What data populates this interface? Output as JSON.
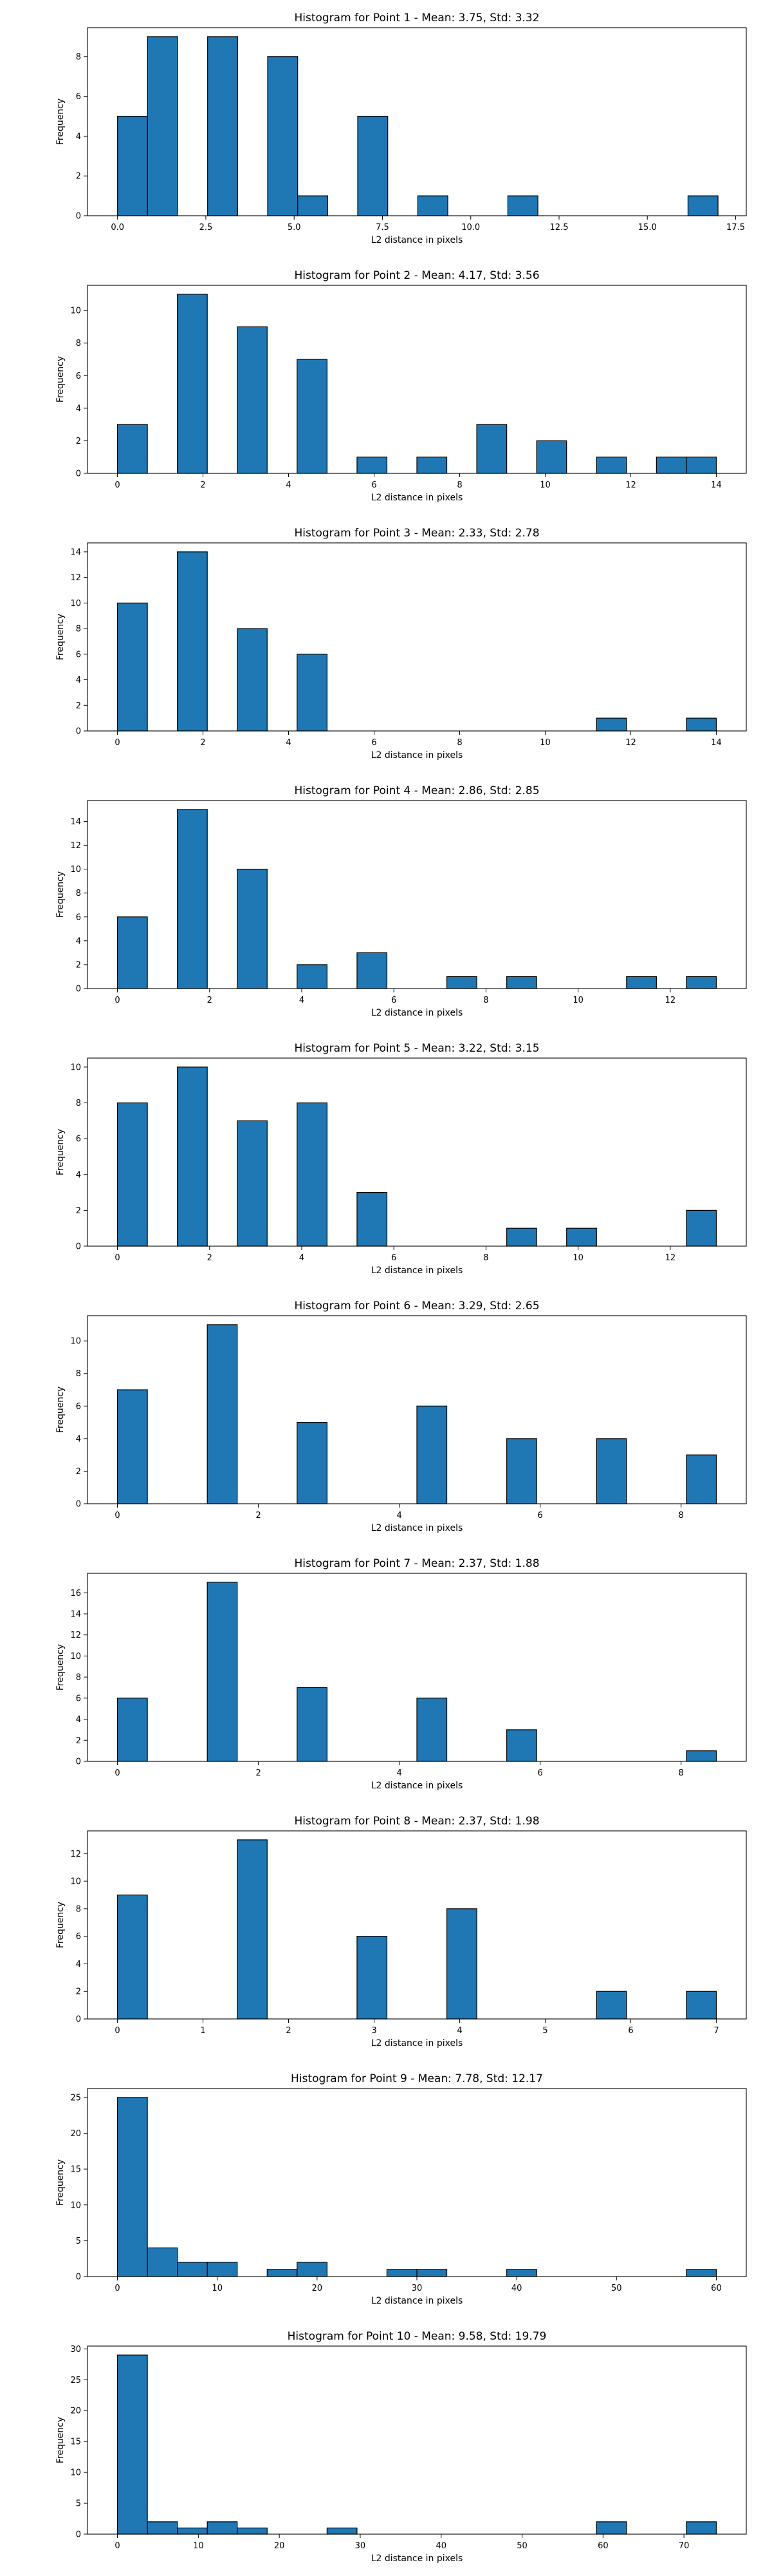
{
  "figure": {
    "bar_color": "#1f77b4",
    "edge_color": "#000000"
  },
  "chart_data": [
    {
      "type": "bar",
      "title": "Histogram for Point 1 - Mean: 3.75, Std: 3.32",
      "xlabel": "L2 distance in pixels",
      "ylabel": "Frequency",
      "xlim": [
        -0.85,
        17.8
      ],
      "ylim": [
        0,
        9.45
      ],
      "xticks": [
        0.0,
        2.5,
        5.0,
        7.5,
        10.0,
        12.5,
        15.0,
        17.5
      ],
      "xtick_labels": [
        "0.0",
        "2.5",
        "5.0",
        "7.5",
        "10.0",
        "12.5",
        "15.0",
        "17.5"
      ],
      "yticks": [
        0,
        2,
        4,
        6,
        8
      ],
      "bin_edges": [
        0.0,
        0.85,
        1.7,
        2.55,
        3.4,
        4.25,
        5.1,
        5.95,
        6.8,
        7.65,
        8.5,
        9.35,
        10.2,
        11.05,
        11.9,
        12.75,
        13.6,
        14.45,
        15.3,
        16.15,
        17.0
      ],
      "values": [
        5,
        9,
        0,
        9,
        0,
        8,
        1,
        0,
        5,
        0,
        1,
        0,
        0,
        1,
        0,
        0,
        0,
        0,
        0,
        1
      ]
    },
    {
      "type": "bar",
      "title": "Histogram for Point 2 - Mean: 4.17, Std: 3.56",
      "xlabel": "L2 distance in pixels",
      "ylabel": "Frequency",
      "xlim": [
        -0.7,
        14.7
      ],
      "ylim": [
        0,
        11.55
      ],
      "xticks": [
        0,
        2,
        4,
        6,
        8,
        10,
        12,
        14
      ],
      "xtick_labels": [
        "0",
        "2",
        "4",
        "6",
        "8",
        "10",
        "12",
        "14"
      ],
      "yticks": [
        0,
        2,
        4,
        6,
        8,
        10
      ],
      "bin_edges": [
        0.0,
        0.7,
        1.4,
        2.1,
        2.8,
        3.5,
        4.2,
        4.9,
        5.6,
        6.3,
        7.0,
        7.7,
        8.4,
        9.1,
        9.8,
        10.5,
        11.2,
        11.9,
        12.6,
        13.3,
        14.0
      ],
      "values": [
        3,
        0,
        11,
        0,
        9,
        0,
        7,
        0,
        1,
        0,
        1,
        0,
        3,
        0,
        2,
        0,
        1,
        0,
        1,
        1
      ]
    },
    {
      "type": "bar",
      "title": "Histogram for Point 3 - Mean: 2.33, Std: 2.78",
      "xlabel": "L2 distance in pixels",
      "ylabel": "Frequency",
      "xlim": [
        -0.7,
        14.7
      ],
      "ylim": [
        0,
        14.7
      ],
      "xticks": [
        0,
        2,
        4,
        6,
        8,
        10,
        12,
        14
      ],
      "xtick_labels": [
        "0",
        "2",
        "4",
        "6",
        "8",
        "10",
        "12",
        "14"
      ],
      "yticks": [
        0,
        2,
        4,
        6,
        8,
        10,
        12,
        14
      ],
      "bin_edges": [
        0.0,
        0.7,
        1.4,
        2.1,
        2.8,
        3.5,
        4.2,
        4.9,
        5.6,
        6.3,
        7.0,
        7.7,
        8.4,
        9.1,
        9.8,
        10.5,
        11.2,
        11.9,
        12.6,
        13.3,
        14.0
      ],
      "values": [
        10,
        0,
        14,
        0,
        8,
        0,
        6,
        0,
        0,
        0,
        0,
        0,
        0,
        0,
        0,
        0,
        1,
        0,
        0,
        1
      ]
    },
    {
      "type": "bar",
      "title": "Histogram for Point 4 - Mean: 2.86, Std: 2.85",
      "xlabel": "L2 distance in pixels",
      "ylabel": "Frequency",
      "xlim": [
        -0.65,
        13.65
      ],
      "ylim": [
        0,
        15.75
      ],
      "xticks": [
        0,
        2,
        4,
        6,
        8,
        10,
        12
      ],
      "xtick_labels": [
        "0",
        "2",
        "4",
        "6",
        "8",
        "10",
        "12"
      ],
      "yticks": [
        0,
        2,
        4,
        6,
        8,
        10,
        12,
        14
      ],
      "bin_edges": [
        0.0,
        0.65,
        1.3,
        1.95,
        2.6,
        3.25,
        3.9,
        4.55,
        5.2,
        5.85,
        6.5,
        7.15,
        7.8,
        8.45,
        9.1,
        9.75,
        10.4,
        11.05,
        11.7,
        12.35,
        13.0
      ],
      "values": [
        6,
        0,
        15,
        0,
        10,
        0,
        2,
        0,
        3,
        0,
        0,
        1,
        0,
        1,
        0,
        0,
        0,
        1,
        0,
        1
      ]
    },
    {
      "type": "bar",
      "title": "Histogram for Point 5 - Mean: 3.22, Std: 3.15",
      "xlabel": "L2 distance in pixels",
      "ylabel": "Frequency",
      "xlim": [
        -0.65,
        13.65
      ],
      "ylim": [
        0,
        10.5
      ],
      "xticks": [
        0,
        2,
        4,
        6,
        8,
        10,
        12
      ],
      "xtick_labels": [
        "0",
        "2",
        "4",
        "6",
        "8",
        "10",
        "12"
      ],
      "yticks": [
        0,
        2,
        4,
        6,
        8,
        10
      ],
      "bin_edges": [
        0.0,
        0.65,
        1.3,
        1.95,
        2.6,
        3.25,
        3.9,
        4.55,
        5.2,
        5.85,
        6.5,
        7.15,
        7.8,
        8.45,
        9.1,
        9.75,
        10.4,
        11.05,
        11.7,
        12.35,
        13.0
      ],
      "values": [
        8,
        0,
        10,
        0,
        7,
        0,
        8,
        0,
        3,
        0,
        0,
        0,
        0,
        1,
        0,
        1,
        0,
        0,
        0,
        2
      ]
    },
    {
      "type": "bar",
      "title": "Histogram for Point 6 - Mean: 3.29, Std: 2.65",
      "xlabel": "L2 distance in pixels",
      "ylabel": "Frequency",
      "xlim": [
        -0.425,
        8.925
      ],
      "ylim": [
        0,
        11.55
      ],
      "xticks": [
        0,
        2,
        4,
        6,
        8
      ],
      "xtick_labels": [
        "0",
        "2",
        "4",
        "6",
        "8"
      ],
      "yticks": [
        0,
        2,
        4,
        6,
        8,
        10
      ],
      "bin_edges": [
        0.0,
        0.425,
        0.85,
        1.275,
        1.7,
        2.125,
        2.55,
        2.975,
        3.4,
        3.825,
        4.25,
        4.675,
        5.1,
        5.525,
        5.95,
        6.375,
        6.8,
        7.225,
        7.65,
        8.075,
        8.5
      ],
      "values": [
        7,
        0,
        0,
        11,
        0,
        0,
        5,
        0,
        0,
        0,
        6,
        0,
        0,
        4,
        0,
        0,
        4,
        0,
        0,
        3
      ]
    },
    {
      "type": "bar",
      "title": "Histogram for Point 7 - Mean: 2.37, Std: 1.88",
      "xlabel": "L2 distance in pixels",
      "ylabel": "Frequency",
      "xlim": [
        -0.425,
        8.925
      ],
      "ylim": [
        0,
        17.85
      ],
      "xticks": [
        0,
        2,
        4,
        6,
        8
      ],
      "xtick_labels": [
        "0",
        "2",
        "4",
        "6",
        "8"
      ],
      "yticks": [
        0,
        2,
        4,
        6,
        8,
        10,
        12,
        14,
        16
      ],
      "bin_edges": [
        0.0,
        0.425,
        0.85,
        1.275,
        1.7,
        2.125,
        2.55,
        2.975,
        3.4,
        3.825,
        4.25,
        4.675,
        5.1,
        5.525,
        5.95,
        6.375,
        6.8,
        7.225,
        7.65,
        8.075,
        8.5
      ],
      "values": [
        6,
        0,
        0,
        17,
        0,
        0,
        7,
        0,
        0,
        0,
        6,
        0,
        0,
        3,
        0,
        0,
        0,
        0,
        0,
        1
      ]
    },
    {
      "type": "bar",
      "title": "Histogram for Point 8 - Mean: 2.37, Std: 1.98",
      "xlabel": "L2 distance in pixels",
      "ylabel": "Frequency",
      "xlim": [
        -0.35,
        7.35
      ],
      "ylim": [
        0,
        13.65
      ],
      "xticks": [
        0,
        1,
        2,
        3,
        4,
        5,
        6,
        7
      ],
      "xtick_labels": [
        "0",
        "1",
        "2",
        "3",
        "4",
        "5",
        "6",
        "7"
      ],
      "yticks": [
        0,
        2,
        4,
        6,
        8,
        10,
        12
      ],
      "bin_edges": [
        0.0,
        0.35,
        0.7,
        1.05,
        1.4,
        1.75,
        2.1,
        2.45,
        2.8,
        3.15,
        3.5,
        3.85,
        4.2,
        4.55,
        4.9,
        5.25,
        5.6,
        5.95,
        6.3,
        6.65,
        7.0
      ],
      "values": [
        9,
        0,
        0,
        0,
        13,
        0,
        0,
        0,
        6,
        0,
        0,
        8,
        0,
        0,
        0,
        0,
        2,
        0,
        0,
        2
      ]
    },
    {
      "type": "bar",
      "title": "Histogram for Point 9 - Mean: 7.78, Std: 12.17",
      "xlabel": "L2 distance in pixels",
      "ylabel": "Frequency",
      "xlim": [
        -3.0,
        63.0
      ],
      "ylim": [
        0,
        26.25
      ],
      "xticks": [
        0,
        10,
        20,
        30,
        40,
        50,
        60
      ],
      "xtick_labels": [
        "0",
        "10",
        "20",
        "30",
        "40",
        "50",
        "60"
      ],
      "yticks": [
        0,
        5,
        10,
        15,
        20,
        25
      ],
      "bin_edges": [
        0,
        3,
        6,
        9,
        12,
        15,
        18,
        21,
        24,
        27,
        30,
        33,
        36,
        39,
        42,
        45,
        48,
        51,
        54,
        57,
        60
      ],
      "values": [
        25,
        4,
        2,
        2,
        0,
        1,
        2,
        0,
        0,
        1,
        1,
        0,
        0,
        1,
        0,
        0,
        0,
        0,
        0,
        1
      ]
    },
    {
      "type": "bar",
      "title": "Histogram for Point 10 - Mean: 9.58, Std: 19.79",
      "xlabel": "L2 distance in pixels",
      "ylabel": "Frequency",
      "xlim": [
        -3.7,
        77.7
      ],
      "ylim": [
        0,
        30.45
      ],
      "xticks": [
        0,
        10,
        20,
        30,
        40,
        50,
        60,
        70
      ],
      "xtick_labels": [
        "0",
        "10",
        "20",
        "30",
        "40",
        "50",
        "60",
        "70"
      ],
      "yticks": [
        0,
        5,
        10,
        15,
        20,
        25,
        30
      ],
      "bin_edges": [
        0.0,
        3.7,
        7.4,
        11.1,
        14.8,
        18.5,
        22.2,
        25.9,
        29.6,
        33.3,
        37.0,
        40.7,
        44.4,
        48.1,
        51.8,
        55.5,
        59.2,
        62.9,
        66.6,
        70.3,
        74.0
      ],
      "values": [
        29,
        2,
        1,
        2,
        1,
        0,
        0,
        1,
        0,
        0,
        0,
        0,
        0,
        0,
        0,
        0,
        2,
        0,
        0,
        2
      ]
    }
  ]
}
